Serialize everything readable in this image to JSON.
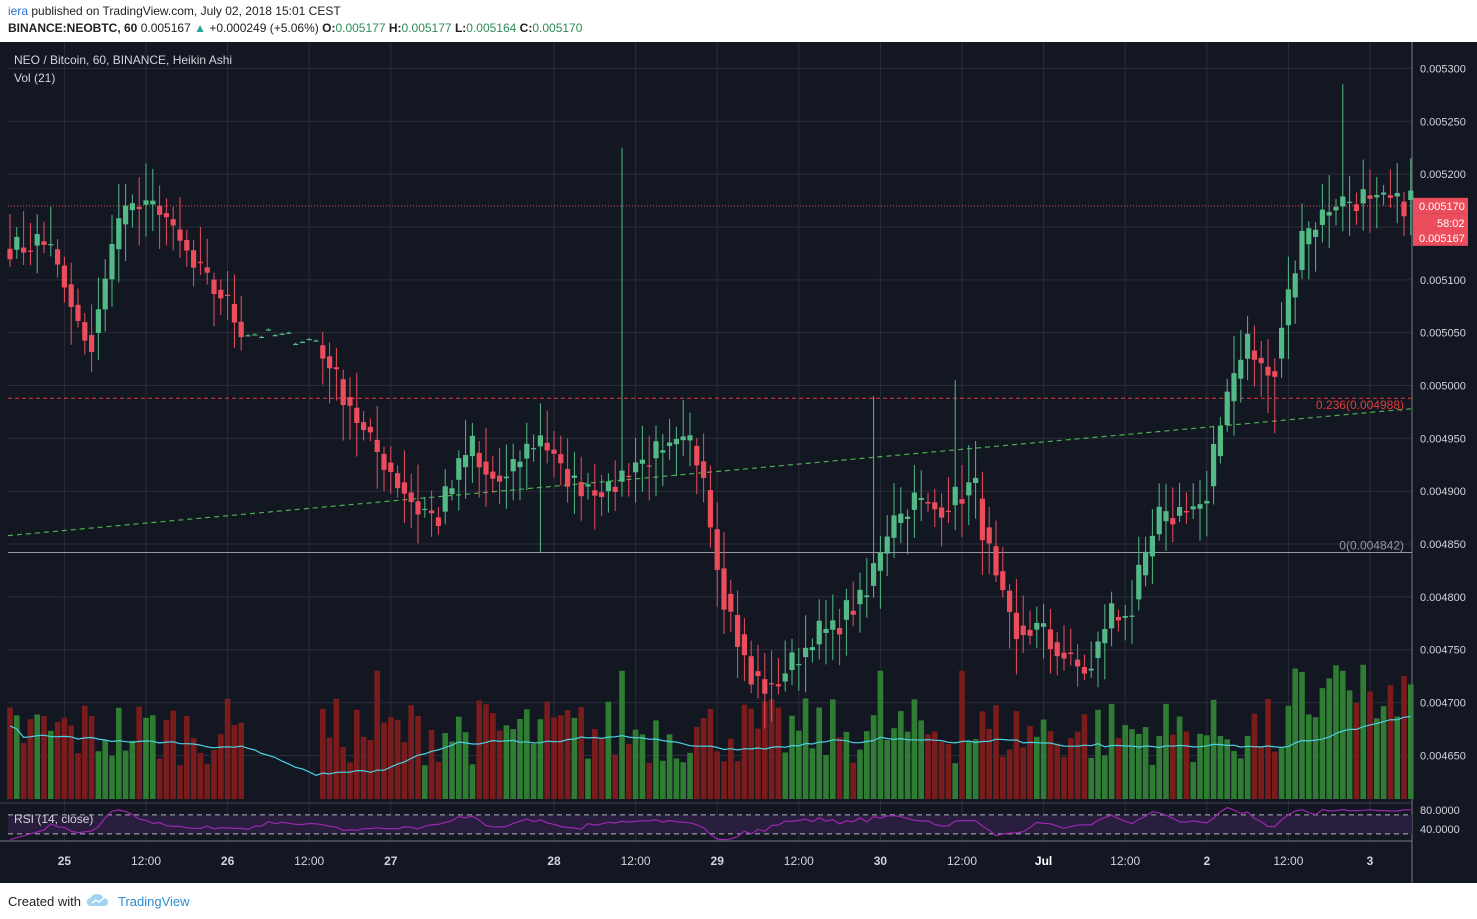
{
  "header": {
    "author": "iera",
    "published_text": "published on TradingView.com, July 02, 2018 15:01 CEST",
    "symbol": "BINANCE:NEOBTC, 60",
    "last": "0.005167",
    "change": "+0.000249 (+5.06%)",
    "o_label": "O:",
    "o_value": "0.005177",
    "h_label": "H:",
    "h_value": "0.005177",
    "l_label": "L:",
    "l_value": "0.005164",
    "c_label": "C:",
    "c_value": "0.005170"
  },
  "footer": {
    "created_with": "Created with",
    "brand": "TradingView"
  },
  "colors": {
    "background": "#131722",
    "grid": "#2a2e39",
    "bull": "#53b987",
    "bear": "#eb4d5c",
    "vol_bull": "#2e7d32",
    "vol_bear": "#7b1c1c",
    "vol_ma": "#4dd0e1",
    "rsi": "#9c27b0",
    "trendline": "#4caf50",
    "fib_line": "#e53935"
  },
  "chart_data": {
    "type": "candlestick",
    "title": "NEO / Bitcoin, 60, BINANCE, Heikin Ashi",
    "volume_label": "Vol (21)",
    "rsi_label": "RSI (14, close)",
    "y_range": [
      0.004605,
      0.005325
    ],
    "y_ticks": [
      "0.005300",
      "0.005250",
      "0.005200",
      "0.005150",
      "0.005100",
      "0.005050",
      "0.005000",
      "0.004950",
      "0.004900",
      "0.004850",
      "0.004800",
      "0.004750",
      "0.004700",
      "0.004650"
    ],
    "x_labels": [
      "25",
      "12:00",
      "26",
      "12:00",
      "27",
      "28",
      "12:00",
      "29",
      "12:00",
      "30",
      "12:00",
      "Jul",
      "12:00",
      "2",
      "12:00",
      "3"
    ],
    "x_label_bars": [
      8,
      20,
      32,
      44,
      56,
      80,
      92,
      104,
      116,
      128,
      140,
      152,
      164,
      176,
      188,
      200
    ],
    "price_line": {
      "value": 0.00517,
      "label": "0.005170",
      "countdown": "58:02",
      "bid_label": "0.005167"
    },
    "fib_levels": [
      {
        "label": "0.236(0.004988)",
        "value": 0.004988
      },
      {
        "label": "0(0.004842)",
        "value": 0.004842
      }
    ],
    "trendline": {
      "from_bar": 0,
      "from_value": 0.004858,
      "to_bar": 206,
      "to_value": 0.004978
    },
    "rsi_levels": [
      "80.0000",
      "40.0000"
    ],
    "rsi_bands": [
      70,
      30
    ],
    "anchors": [
      [
        0,
        0.00508,
        0.00518
      ],
      [
        6,
        0.00512,
        0.00515
      ],
      [
        12,
        0.00503,
        0.00504
      ],
      [
        17,
        0.00514,
        0.00519
      ],
      [
        22,
        0.00515,
        0.00519
      ],
      [
        27,
        0.00511,
        0.00513
      ],
      [
        32,
        0.00507,
        0.00509
      ],
      [
        35,
        0.005045,
        0.005055
      ],
      [
        45,
        0.00504,
        0.005045
      ],
      [
        47,
        0.00501,
        0.00504
      ],
      [
        52,
        0.00495,
        0.00497
      ],
      [
        56,
        0.00492,
        0.00493
      ],
      [
        60,
        0.00488,
        0.00489
      ],
      [
        63,
        0.00487,
        0.00488
      ],
      [
        68,
        0.00493,
        0.00495
      ],
      [
        72,
        0.0049,
        0.00491
      ],
      [
        78,
        0.00494,
        0.00496
      ],
      [
        83,
        0.0049,
        0.00492
      ],
      [
        88,
        0.004895,
        0.004905
      ],
      [
        91,
        0.004915,
        0.004925
      ],
      [
        96,
        0.00493,
        0.00494
      ],
      [
        100,
        0.004945,
        0.00495
      ],
      [
        102,
        0.00491,
        0.00494
      ],
      [
        105,
        0.0048,
        0.00483
      ],
      [
        109,
        0.004725,
        0.00474
      ],
      [
        112,
        0.004705,
        0.00472
      ],
      [
        118,
        0.00475,
        0.00476
      ],
      [
        122,
        0.00477,
        0.00478
      ],
      [
        126,
        0.00479,
        0.00481
      ],
      [
        130,
        0.00486,
        0.00488
      ],
      [
        134,
        0.00488,
        0.0049
      ],
      [
        138,
        0.00488,
        0.00489
      ],
      [
        142,
        0.0049,
        0.00491
      ],
      [
        145,
        0.00482,
        0.00484
      ],
      [
        148,
        0.00476,
        0.00478
      ],
      [
        152,
        0.00476,
        0.00478
      ],
      [
        156,
        0.00473,
        0.00475
      ],
      [
        159,
        0.00472,
        0.00474
      ],
      [
        162,
        0.00477,
        0.00479
      ],
      [
        165,
        0.00478,
        0.00479
      ],
      [
        169,
        0.00486,
        0.00487
      ],
      [
        173,
        0.00488,
        0.00489
      ],
      [
        176,
        0.00488,
        0.00489
      ],
      [
        179,
        0.00497,
        0.00499
      ],
      [
        182,
        0.00503,
        0.00504
      ],
      [
        186,
        0.005,
        0.00502
      ],
      [
        190,
        0.00512,
        0.00514
      ],
      [
        194,
        0.00516,
        0.00517
      ],
      [
        197,
        0.00517,
        0.00518
      ]
    ]
  }
}
